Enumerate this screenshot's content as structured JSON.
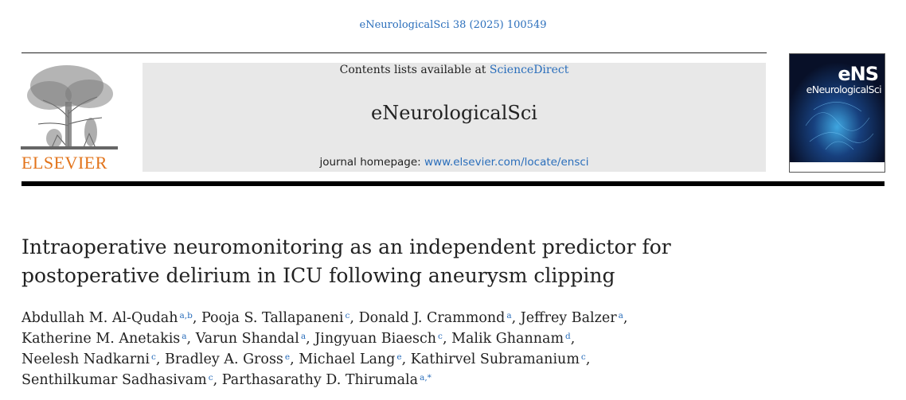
{
  "citation": "eNeurologicalSci 38 (2025) 100549",
  "publisher": {
    "logo_text": "ELSEVIER",
    "logo_icon": "tree-icon"
  },
  "banner": {
    "contents_prefix": "Contents lists available at ",
    "contents_link": "ScienceDirect",
    "journal_title": "eNeurologicalSci",
    "homepage_prefix": "journal homepage: ",
    "homepage_link": "www.elsevier.com/locate/ensci"
  },
  "cover": {
    "abbrev": "eNS",
    "name": "eNeurologicalSci"
  },
  "article": {
    "title_line1": "Intraoperative neuromonitoring as an independent predictor for",
    "title_line2": "postoperative delirium in ICU following aneurysm clipping",
    "authors": [
      {
        "name": "Abdullah M. Al-Qudah",
        "aff": "a,b"
      },
      {
        "name": "Pooja S. Tallapaneni",
        "aff": "c"
      },
      {
        "name": "Donald J. Crammond",
        "aff": "a"
      },
      {
        "name": "Jeffrey Balzer",
        "aff": "a"
      },
      {
        "name": "Katherine M. Anetakis",
        "aff": "a"
      },
      {
        "name": "Varun Shandal",
        "aff": "a"
      },
      {
        "name": "Jingyuan Biaesch",
        "aff": "c"
      },
      {
        "name": "Malik Ghannam",
        "aff": "d"
      },
      {
        "name": "Neelesh Nadkarni",
        "aff": "c"
      },
      {
        "name": "Bradley A. Gross",
        "aff": "e"
      },
      {
        "name": "Michael Lang",
        "aff": "e"
      },
      {
        "name": "Kathirvel Subramanium",
        "aff": "c"
      },
      {
        "name": "Senthilkumar Sadhasivam",
        "aff": "c"
      },
      {
        "name": "Parthasarathy D. Thirumala",
        "aff": "a,*"
      }
    ]
  },
  "colors": {
    "link": "#2a6ebb",
    "elsevier_orange": "#e2731a",
    "banner_gray": "#e8e8e8"
  }
}
